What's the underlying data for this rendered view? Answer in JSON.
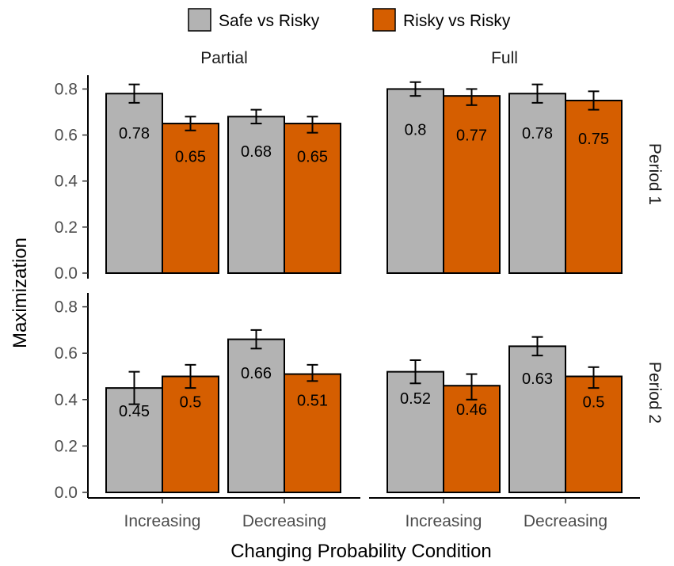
{
  "chart_data": {
    "type": "bar",
    "xlabel": "Changing Probability Condition",
    "ylabel": "Maximization",
    "categories": [
      "Increasing",
      "Decreasing"
    ],
    "ylim": [
      0,
      0.86
    ],
    "yticks": [
      "0.0",
      "0.2",
      "0.4",
      "0.6",
      "0.8"
    ],
    "legend": {
      "position": "top",
      "entries": [
        {
          "name": "Safe vs Risky",
          "color": "#b3b3b3"
        },
        {
          "name": "Risky vs Risky",
          "color": "#d55e00"
        }
      ]
    },
    "columns": [
      "Partial",
      "Full"
    ],
    "rows": [
      "Period 1",
      "Period 2"
    ],
    "panels": [
      {
        "column": "Partial",
        "row": "Period 1",
        "series": [
          {
            "name": "Safe vs Risky",
            "values": [
              0.78,
              0.68
            ],
            "labels": [
              "0.78",
              "0.68"
            ],
            "err_low": [
              0.74,
              0.65
            ],
            "err_high": [
              0.82,
              0.71
            ]
          },
          {
            "name": "Risky vs Risky",
            "values": [
              0.65,
              0.65
            ],
            "labels": [
              "0.65",
              "0.65"
            ],
            "err_low": [
              0.62,
              0.61
            ],
            "err_high": [
              0.68,
              0.68
            ]
          }
        ]
      },
      {
        "column": "Full",
        "row": "Period 1",
        "series": [
          {
            "name": "Safe vs Risky",
            "values": [
              0.8,
              0.78
            ],
            "labels": [
              "0.8",
              "0.78"
            ],
            "err_low": [
              0.77,
              0.74
            ],
            "err_high": [
              0.83,
              0.82
            ]
          },
          {
            "name": "Risky vs Risky",
            "values": [
              0.77,
              0.75
            ],
            "labels": [
              "0.77",
              "0.75"
            ],
            "err_low": [
              0.73,
              0.71
            ],
            "err_high": [
              0.8,
              0.79
            ]
          }
        ]
      },
      {
        "column": "Partial",
        "row": "Period 2",
        "series": [
          {
            "name": "Safe vs Risky",
            "values": [
              0.45,
              0.66
            ],
            "labels": [
              "0.45",
              "0.66"
            ],
            "err_low": [
              0.38,
              0.62
            ],
            "err_high": [
              0.52,
              0.7
            ]
          },
          {
            "name": "Risky vs Risky",
            "values": [
              0.5,
              0.51
            ],
            "labels": [
              "0.5",
              "0.51"
            ],
            "err_low": [
              0.45,
              0.48
            ],
            "err_high": [
              0.55,
              0.55
            ]
          }
        ]
      },
      {
        "column": "Full",
        "row": "Period 2",
        "series": [
          {
            "name": "Safe vs Risky",
            "values": [
              0.52,
              0.63
            ],
            "labels": [
              "0.52",
              "0.63"
            ],
            "err_low": [
              0.47,
              0.59
            ],
            "err_high": [
              0.57,
              0.67
            ]
          },
          {
            "name": "Risky vs Risky",
            "values": [
              0.46,
              0.5
            ],
            "labels": [
              "0.46",
              "0.5"
            ],
            "err_low": [
              0.4,
              0.45
            ],
            "err_high": [
              0.51,
              0.54
            ]
          }
        ]
      }
    ]
  }
}
